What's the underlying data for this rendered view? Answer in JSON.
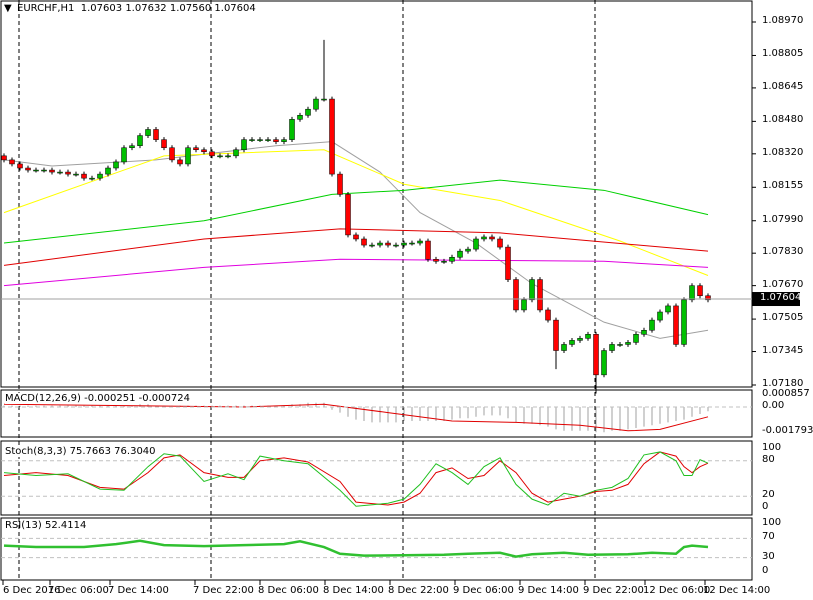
{
  "header": {
    "symbol": "EURCHF,H1",
    "open": "1.07603",
    "high": "1.07632",
    "low": "1.07560",
    "close": "1.07604"
  },
  "chart_data": [
    {
      "type": "candlestick",
      "title": "EURCHF,H1",
      "current_price": "1.07604",
      "price_ticks": [
        "1.08970",
        "1.08805",
        "1.08645",
        "1.08480",
        "1.08320",
        "1.08155",
        "1.07990",
        "1.07830",
        "1.07670",
        "1.07505",
        "1.07345",
        "1.07180"
      ],
      "ylim": [
        1.0718,
        1.0897
      ],
      "x_ticks": [
        "6 Dec 2016",
        "7 Dec 06:00",
        "7 Dec 14:00",
        "7 Dec 22:00",
        "8 Dec 06:00",
        "8 Dec 14:00",
        "8 Dec 22:00",
        "9 Dec 06:00",
        "9 Dec 14:00",
        "9 Dec 22:00",
        "12 Dec 06:00",
        "12 Dec 14:00"
      ],
      "closes": [
        1.0829,
        1.0827,
        1.0825,
        1.0824,
        1.0824,
        1.0824,
        1.0823,
        1.0823,
        1.0822,
        1.0822,
        1.082,
        1.082,
        1.0822,
        1.0825,
        1.0828,
        1.0835,
        1.0836,
        1.0841,
        1.0844,
        1.0839,
        1.0835,
        1.0829,
        1.0827,
        1.0835,
        1.0834,
        1.0833,
        1.0831,
        1.0831,
        1.0831,
        1.0834,
        1.0839,
        1.0839,
        1.0839,
        1.0839,
        1.0838,
        1.0839,
        1.0849,
        1.0851,
        1.0854,
        1.0859,
        1.0859,
        1.0822,
        1.0812,
        1.0792,
        1.079,
        1.0787,
        1.0787,
        1.0788,
        1.0787,
        1.0787,
        1.0788,
        1.0788,
        1.0789,
        1.078,
        1.0779,
        1.0779,
        1.0781,
        1.0784,
        1.0785,
        1.079,
        1.0791,
        1.079,
        1.0786,
        1.077,
        1.0755,
        1.076,
        1.077,
        1.0755,
        1.075,
        1.0735,
        1.0738,
        1.074,
        1.0741,
        1.0743,
        1.0723,
        1.0735,
        1.0738,
        1.0738,
        1.0739,
        1.0743,
        1.0745,
        1.075,
        1.0754,
        1.0757,
        1.0738,
        1.076,
        1.0767,
        1.0762,
        1.076
      ],
      "moving_averages": [
        {
          "name": "ma-gray",
          "color": "#a0a0a0",
          "points": [
            [
              0,
              1.0829
            ],
            [
              6,
              1.0826
            ],
            [
              19,
              1.0829
            ],
            [
              34,
              1.0836
            ],
            [
              41,
              1.0838
            ],
            [
              47,
              1.0823
            ],
            [
              52,
              1.0803
            ],
            [
              59,
              1.0788
            ],
            [
              66,
              1.0768
            ],
            [
              75,
              1.0749
            ],
            [
              82,
              1.0741
            ],
            [
              88,
              1.0745
            ]
          ]
        },
        {
          "name": "ma-yellow",
          "color": "#ffff00",
          "points": [
            [
              0,
              1.0803
            ],
            [
              20,
              1.0831
            ],
            [
              40,
              1.0834
            ],
            [
              50,
              1.0817
            ],
            [
              62,
              1.0809
            ],
            [
              77,
              1.0789
            ],
            [
              88,
              1.0772
            ]
          ]
        },
        {
          "name": "ma-green",
          "color": "#00d000",
          "points": [
            [
              0,
              1.0788
            ],
            [
              25,
              1.0799
            ],
            [
              41,
              1.0812
            ],
            [
              50,
              1.0814
            ],
            [
              62,
              1.0819
            ],
            [
              75,
              1.0814
            ],
            [
              88,
              1.0802
            ]
          ]
        },
        {
          "name": "ma-red",
          "color": "#e00000",
          "points": [
            [
              0,
              1.0777
            ],
            [
              25,
              1.079
            ],
            [
              42,
              1.0795
            ],
            [
              62,
              1.0793
            ],
            [
              88,
              1.0784
            ]
          ]
        },
        {
          "name": "ma-magenta",
          "color": "#e000e0",
          "points": [
            [
              0,
              1.0767
            ],
            [
              25,
              1.0776
            ],
            [
              42,
              1.078
            ],
            [
              75,
              1.0779
            ],
            [
              88,
              1.0776
            ]
          ]
        }
      ]
    },
    {
      "type": "macd",
      "label": "MACD(12,26,9) -0.000251 -0.000724",
      "ticks": [
        "0.000857",
        "0.00",
        "-0.001793"
      ],
      "ylim": [
        -0.001793,
        0.000857
      ],
      "histogram": [
        0.0001,
        0.0001,
        0.0001,
        0.0001,
        0.0001,
        0.0001,
        0.0001,
        0.0001,
        0.0001,
        0.0001,
        0.0001,
        0.0001,
        0.0001,
        0.0001,
        0.0001,
        0.0001,
        0.0001,
        0.0002,
        0.0002,
        0.0001,
        0.0001,
        0.0001,
        0.0001,
        0.0001,
        0.0001,
        0.0001,
        0.0001,
        0.0001,
        0.0001,
        0.0001,
        0.0001,
        0.0001,
        0.0001,
        0.0001,
        0.0001,
        0.0001,
        0.0002,
        0.0002,
        0.0003,
        0.0003,
        0.0003,
        -0.0002,
        -0.0004,
        -0.0007,
        -0.0009,
        -0.001,
        -0.0011,
        -0.0011,
        -0.0011,
        -0.0011,
        -0.001,
        -0.001,
        -0.001,
        -0.001,
        -0.001,
        -0.001,
        -0.0009,
        -0.0008,
        -0.0008,
        -0.0007,
        -0.0006,
        -0.0006,
        -0.0006,
        -0.0008,
        -0.0011,
        -0.0012,
        -0.0012,
        -0.0013,
        -0.0014,
        -0.0016,
        -0.0017,
        -0.0017,
        -0.0017,
        -0.0017,
        -0.0018,
        -0.0018,
        -0.0017,
        -0.0017,
        -0.0016,
        -0.0015,
        -0.0014,
        -0.0013,
        -0.0012,
        -0.0011,
        -0.001,
        -0.0009,
        -0.0007,
        -0.0005,
        -0.0003
      ],
      "signal": [
        [
          0,
          0.0002
        ],
        [
          15,
          0.0001
        ],
        [
          30,
          0.0
        ],
        [
          40,
          0.0002
        ],
        [
          48,
          -0.0004
        ],
        [
          56,
          -0.001
        ],
        [
          64,
          -0.0011
        ],
        [
          72,
          -0.0013
        ],
        [
          78,
          -0.0017
        ],
        [
          82,
          -0.0016
        ],
        [
          88,
          -0.0007
        ]
      ]
    },
    {
      "type": "line",
      "label": "Stoch(8,3,3) 75.7663 76.3040",
      "ticks": [
        "100",
        "80",
        "20",
        "0"
      ],
      "levels": [
        80,
        20
      ],
      "ylim": [
        0,
        100
      ],
      "main": [
        [
          0,
          60
        ],
        [
          4,
          55
        ],
        [
          8,
          58
        ],
        [
          12,
          32
        ],
        [
          15,
          30
        ],
        [
          18,
          70
        ],
        [
          20,
          92
        ],
        [
          22,
          88
        ],
        [
          25,
          45
        ],
        [
          28,
          58
        ],
        [
          30,
          48
        ],
        [
          32,
          88
        ],
        [
          35,
          80
        ],
        [
          38,
          75
        ],
        [
          42,
          30
        ],
        [
          44,
          3
        ],
        [
          48,
          8
        ],
        [
          50,
          15
        ],
        [
          52,
          40
        ],
        [
          54,
          75
        ],
        [
          56,
          60
        ],
        [
          58,
          40
        ],
        [
          60,
          70
        ],
        [
          62,
          85
        ],
        [
          64,
          40
        ],
        [
          66,
          15
        ],
        [
          68,
          5
        ],
        [
          70,
          25
        ],
        [
          72,
          20
        ],
        [
          74,
          30
        ],
        [
          76,
          35
        ],
        [
          78,
          50
        ],
        [
          80,
          90
        ],
        [
          82,
          95
        ],
        [
          84,
          80
        ],
        [
          85,
          55
        ],
        [
          86,
          55
        ],
        [
          87,
          82
        ],
        [
          88,
          76
        ]
      ],
      "signal": [
        [
          0,
          55
        ],
        [
          4,
          60
        ],
        [
          8,
          55
        ],
        [
          12,
          35
        ],
        [
          15,
          32
        ],
        [
          18,
          60
        ],
        [
          20,
          85
        ],
        [
          22,
          90
        ],
        [
          25,
          60
        ],
        [
          28,
          52
        ],
        [
          30,
          52
        ],
        [
          32,
          80
        ],
        [
          35,
          85
        ],
        [
          38,
          78
        ],
        [
          42,
          45
        ],
        [
          44,
          10
        ],
        [
          48,
          5
        ],
        [
          50,
          10
        ],
        [
          52,
          25
        ],
        [
          54,
          60
        ],
        [
          56,
          68
        ],
        [
          58,
          50
        ],
        [
          60,
          55
        ],
        [
          62,
          80
        ],
        [
          64,
          60
        ],
        [
          66,
          25
        ],
        [
          68,
          10
        ],
        [
          70,
          15
        ],
        [
          72,
          20
        ],
        [
          74,
          28
        ],
        [
          76,
          30
        ],
        [
          78,
          40
        ],
        [
          80,
          75
        ],
        [
          82,
          95
        ],
        [
          84,
          88
        ],
        [
          85,
          70
        ],
        [
          86,
          60
        ],
        [
          87,
          70
        ],
        [
          88,
          76
        ]
      ]
    },
    {
      "type": "line",
      "label": "RSI(13) 52.4114",
      "ticks": [
        "100",
        "70",
        "30",
        "0"
      ],
      "levels": [
        70,
        30
      ],
      "ylim": [
        0,
        100
      ],
      "values": [
        [
          0,
          55
        ],
        [
          4,
          52
        ],
        [
          10,
          52
        ],
        [
          14,
          58
        ],
        [
          17,
          65
        ],
        [
          20,
          56
        ],
        [
          25,
          54
        ],
        [
          30,
          56
        ],
        [
          35,
          58
        ],
        [
          37,
          64
        ],
        [
          40,
          52
        ],
        [
          42,
          38
        ],
        [
          45,
          34
        ],
        [
          50,
          35
        ],
        [
          55,
          36
        ],
        [
          58,
          38
        ],
        [
          62,
          40
        ],
        [
          64,
          32
        ],
        [
          66,
          37
        ],
        [
          70,
          40
        ],
        [
          73,
          36
        ],
        [
          78,
          37
        ],
        [
          81,
          40
        ],
        [
          84,
          38
        ],
        [
          85,
          52
        ],
        [
          86,
          55
        ],
        [
          88,
          52
        ]
      ]
    }
  ]
}
